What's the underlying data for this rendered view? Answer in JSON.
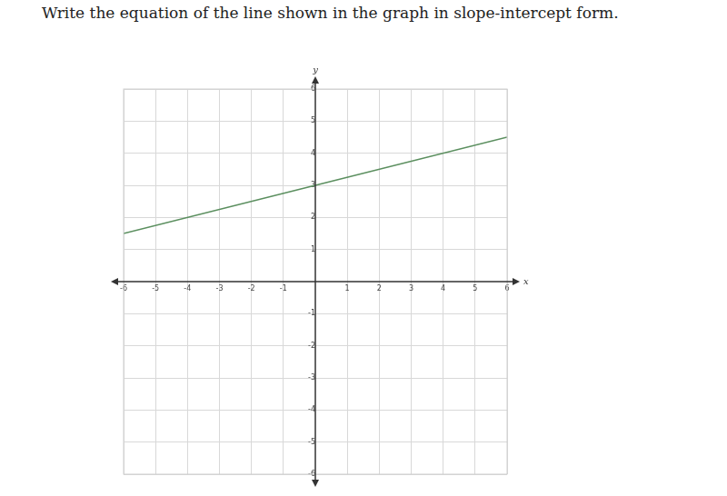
{
  "chart_data": {
    "type": "line",
    "title": "Write the equation of the line shown in the graph in slope-intercept form.",
    "x_label": "x",
    "y_label": "y",
    "x": [
      -6,
      0,
      6
    ],
    "values": [
      1.5,
      3,
      4.5
    ],
    "color": "#5b8f5f",
    "xlim": [
      -6,
      6
    ],
    "ylim": [
      -6,
      6
    ],
    "xticks": [
      -6,
      -5,
      -4,
      -3,
      -2,
      -1,
      1,
      2,
      3,
      4,
      5,
      6
    ],
    "yticks": [
      -6,
      -5,
      -4,
      -3,
      -2,
      -1,
      1,
      2,
      3,
      4,
      5,
      6
    ],
    "grid": true
  }
}
